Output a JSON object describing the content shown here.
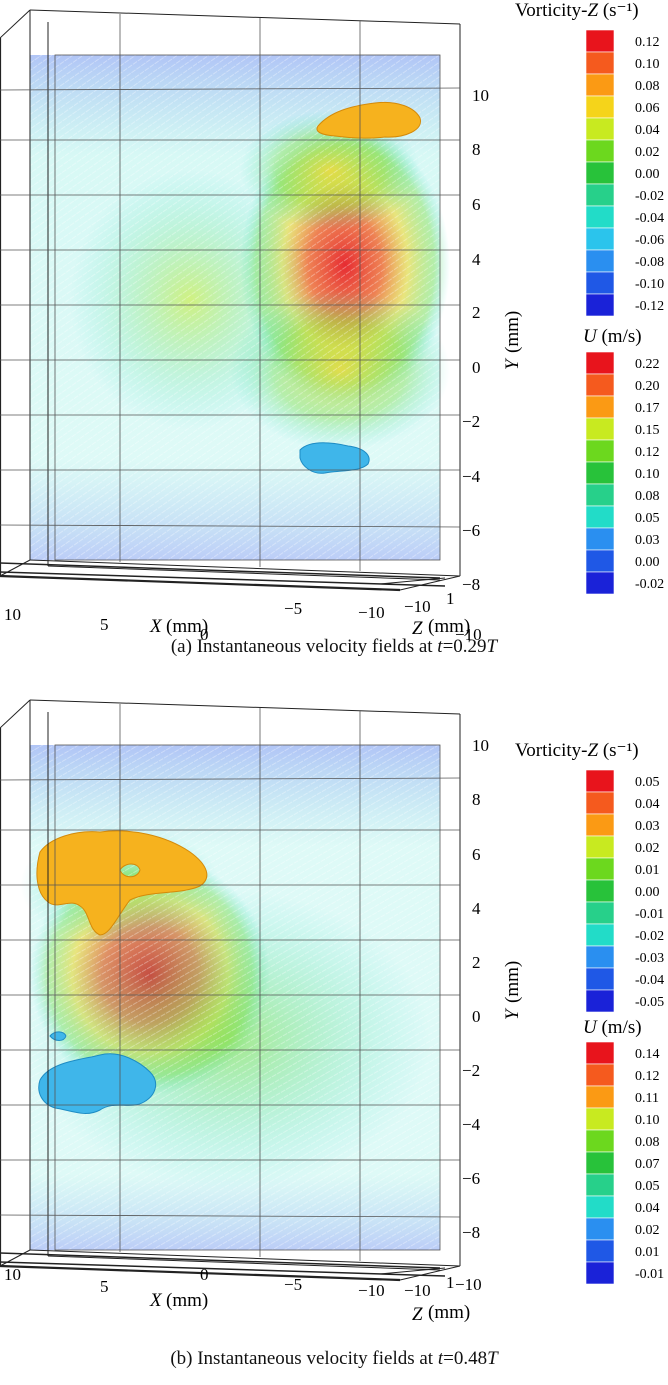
{
  "panels": [
    {
      "id": "a",
      "caption_prefix": "(a) Instantaneous velocity fields at ",
      "caption_var": "t",
      "caption_value": "=0.29",
      "caption_unit": "T",
      "axis_x_title": "X",
      "axis_x_unit": "(mm)",
      "axis_y_title": "Y",
      "axis_y_unit": "(mm)",
      "axis_z_title": "Z",
      "axis_z_unit": "(mm)",
      "x_ticks": [
        "10",
        "5",
        "0",
        "−5",
        "−10"
      ],
      "y_ticks": [
        "10",
        "8",
        "6",
        "4",
        "2",
        "0",
        "−2",
        "−4",
        "−6",
        "−8",
        "−10"
      ],
      "z_ticks": [
        "−10",
        "1"
      ],
      "vorticity_legend": {
        "title": "Vorticity-",
        "title_var": "Z",
        "title_unit": " (s⁻¹)",
        "labels": [
          "0.12",
          "0.10",
          "0.08",
          "0.06",
          "0.04",
          "0.02",
          "0.00",
          "-0.02",
          "-0.04",
          "-0.06",
          "-0.08",
          "-0.10",
          "-0.12"
        ]
      },
      "u_legend": {
        "title_var": "U",
        "title_unit": " (m/s)",
        "labels": [
          "0.22",
          "0.20",
          "0.17",
          "0.15",
          "0.12",
          "0.10",
          "0.08",
          "0.05",
          "0.03",
          "0.00",
          "-0.02"
        ]
      }
    },
    {
      "id": "b",
      "caption_prefix": "(b) Instantaneous velocity fields at ",
      "caption_var": "t",
      "caption_value": "=0.48",
      "caption_unit": "T",
      "axis_x_title": "X",
      "axis_x_unit": "(mm)",
      "axis_y_title": "Y",
      "axis_y_unit": "(mm)",
      "axis_z_title": "Z",
      "axis_z_unit": "(mm)",
      "x_ticks": [
        "10",
        "5",
        "0",
        "−5",
        "−10"
      ],
      "y_ticks": [
        "10",
        "8",
        "6",
        "4",
        "2",
        "0",
        "−2",
        "−4",
        "−6",
        "−8",
        "−10"
      ],
      "z_ticks": [
        "−10",
        "1"
      ],
      "vorticity_legend": {
        "title": "Vorticity-",
        "title_var": "Z",
        "title_unit": " (s⁻¹)",
        "labels": [
          "0.05",
          "0.04",
          "0.03",
          "0.02",
          "0.01",
          "0.00",
          "-0.01",
          "-0.02",
          "-0.03",
          "-0.04",
          "-0.05"
        ]
      },
      "u_legend": {
        "title_var": "U",
        "title_unit": " (m/s)",
        "labels": [
          "0.14",
          "0.12",
          "0.11",
          "0.10",
          "0.08",
          "0.07",
          "0.05",
          "0.04",
          "0.02",
          "0.01",
          "-0.01"
        ]
      }
    }
  ],
  "colors": {
    "scale": [
      "#e8141c",
      "#f55a1e",
      "#fb9a14",
      "#f5d41a",
      "#c8ea20",
      "#6cd81e",
      "#28c23a",
      "#27d08a",
      "#22dcc8",
      "#2bc4ec",
      "#2a8ff0",
      "#1f58e6",
      "#1a22d8"
    ],
    "vortex_positive": "#f6b21e",
    "vortex_negative": "#3fb6ea"
  }
}
